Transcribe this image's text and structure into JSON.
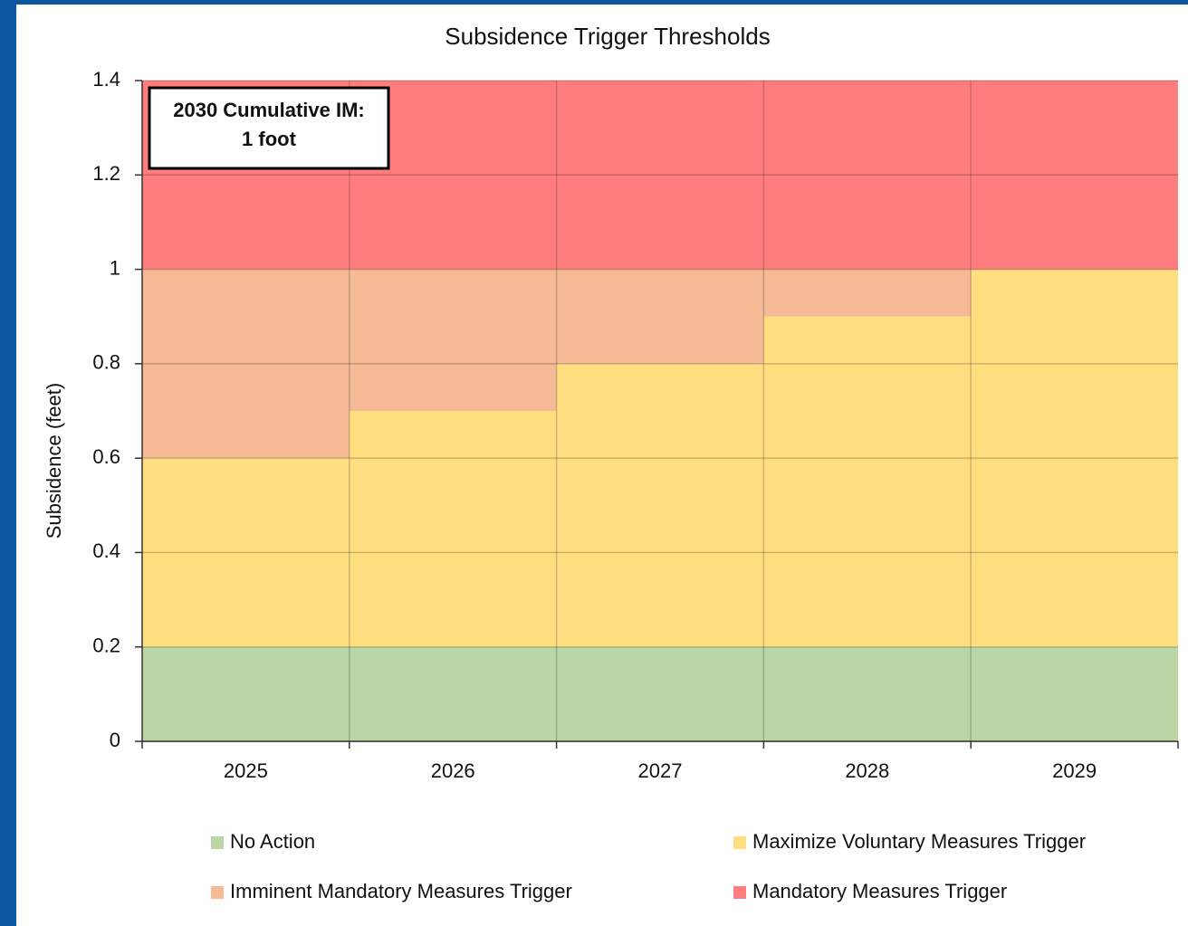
{
  "chart_data": {
    "type": "stacked_bar",
    "title": "Subsidence Trigger Thresholds",
    "y_label": "Subsidence (feet)",
    "annotation": [
      "2030 Cumulative IM:",
      "1 foot"
    ],
    "categories": [
      "2025",
      "2026",
      "2027",
      "2028",
      "2029"
    ],
    "series": [
      {
        "name": "No Action",
        "color": "#b9d6a4",
        "values": [
          0.2,
          0.2,
          0.2,
          0.2,
          0.2
        ]
      },
      {
        "name": "Maximize Voluntary Measures Trigger",
        "color": "#ffde80",
        "values": [
          0.4,
          0.5,
          0.6,
          0.7,
          0.8
        ]
      },
      {
        "name": "Imminent Mandatory Measures Trigger",
        "color": "#f6ba96",
        "values": [
          0.4,
          0.3,
          0.2,
          0.1,
          0
        ]
      },
      {
        "name": "Mandatory Measures Trigger",
        "color": "#ff7d7c",
        "values": [
          0.4,
          0.4,
          0.4,
          0.4,
          0.4
        ]
      }
    ],
    "ylim": [
      0,
      1.4
    ],
    "yticks": [
      0,
      0.2,
      0.4,
      0.6,
      0.8,
      1,
      1.2,
      1.4
    ],
    "grid": true
  }
}
